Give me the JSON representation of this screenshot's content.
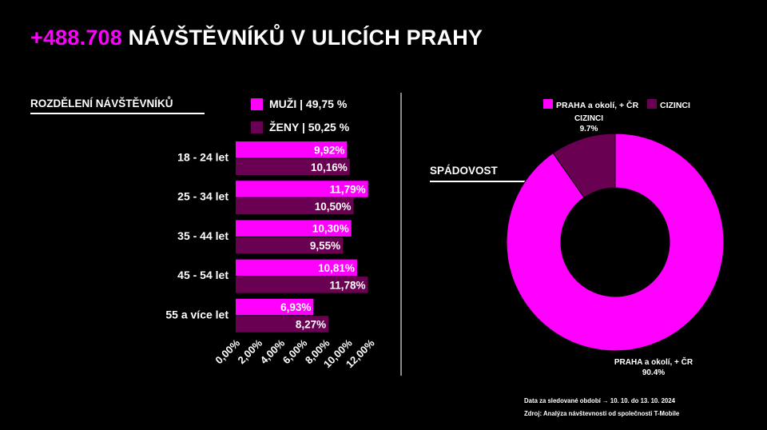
{
  "title": {
    "highlight": "+488.708",
    "rest": "NÁVŠTĚVNÍKŮ V ULICÍCH PRAHY"
  },
  "colors": {
    "accent": "#ff00ff",
    "dark": "#6a0052",
    "background": "#000000"
  },
  "left_section": {
    "label": "ROZDĚLENÍ NÁVŠTĚVNÍKŮ",
    "legend": [
      {
        "label": "MUŽI | 49,75 %",
        "color": "#ff00ff"
      },
      {
        "label": "ŽENY | 50,25 %",
        "color": "#6a0052"
      }
    ]
  },
  "right_section": {
    "label": "SPÁDOVOST",
    "legend": [
      {
        "label": "PRAHA a okolí, + ČR",
        "color": "#ff00ff"
      },
      {
        "label": "CIZINCI",
        "color": "#6a0052"
      }
    ]
  },
  "chart_data": [
    {
      "type": "bar",
      "orientation": "horizontal",
      "categories": [
        "18 - 24 let",
        "25 - 34 let",
        "35 - 44 let",
        "45 - 54 let",
        "55 a více let"
      ],
      "series": [
        {
          "name": "MUŽI | 49,75 %",
          "values": [
            9.92,
            11.79,
            10.3,
            10.81,
            6.93
          ],
          "labels": [
            "9,92%",
            "11,79%",
            "10,30%",
            "10,81%",
            "6,93%"
          ],
          "color": "#ff00ff"
        },
        {
          "name": "ŽENY | 50,25 %",
          "values": [
            10.16,
            10.5,
            9.55,
            11.78,
            8.27
          ],
          "labels": [
            "10,16%",
            "10,50%",
            "9,55%",
            "11,78%",
            "8,27%"
          ],
          "color": "#6a0052"
        }
      ],
      "xlim": [
        0,
        12
      ],
      "xticks": [
        "0,00%",
        "2,00%",
        "4,00%",
        "6,00%",
        "8,00%",
        "10,00%",
        "12,00%"
      ],
      "grid": false
    },
    {
      "type": "pie",
      "variant": "donut",
      "labels": [
        "PRAHA a okolí, + ČR",
        "CIZINCI"
      ],
      "values": [
        90.4,
        9.7
      ],
      "value_labels": [
        "90.4%",
        "9.7%"
      ],
      "colors": [
        "#ff00ff",
        "#6a0052"
      ],
      "legend": "top"
    }
  ],
  "footnotes": [
    "Data za sledované období → 10. 10. do 13. 10. 2024",
    "Zdroj: Analýza návštevnosti od společnosti T-Mobile"
  ]
}
